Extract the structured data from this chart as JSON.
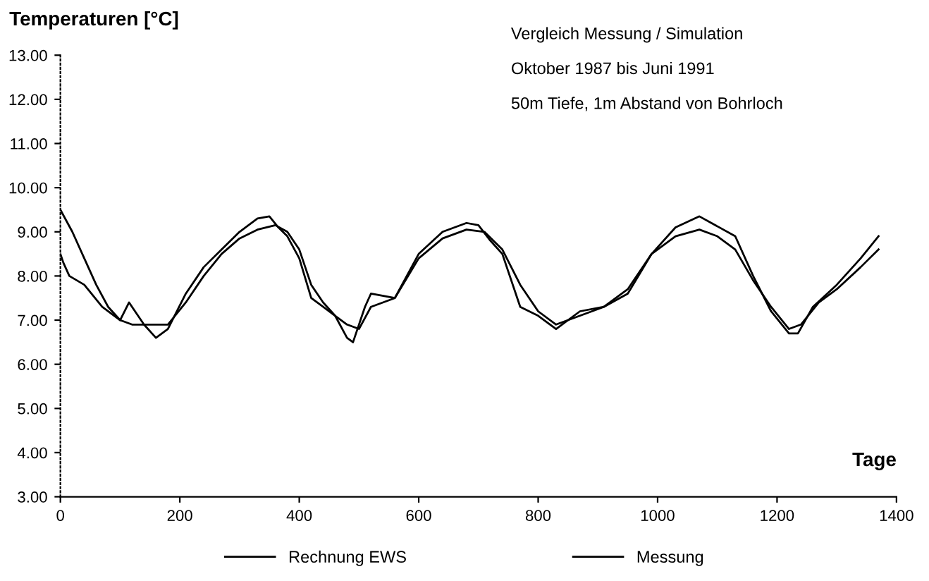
{
  "chart_data": {
    "type": "line",
    "title": "Vergleich Messung / Simulation",
    "annotations": [
      "Oktober 1987 bis Juni 1991",
      "50m Tiefe, 1m Abstand von Bohrloch"
    ],
    "ylabel": "Temperaturen [°C]",
    "xlabel": "Tage",
    "xlim": [
      0,
      1400
    ],
    "xticks": [
      0,
      200,
      400,
      600,
      800,
      1000,
      1200,
      1400
    ],
    "ylim": [
      3,
      13
    ],
    "yticks": [
      {
        "value": 3,
        "label": "3.00"
      },
      {
        "value": 4,
        "label": "4.00"
      },
      {
        "value": 5,
        "label": "5.00"
      },
      {
        "value": 6,
        "label": "6.00"
      },
      {
        "value": 7,
        "label": "7.00"
      },
      {
        "value": 8,
        "label": "8.00"
      },
      {
        "value": 9,
        "label": "9.00"
      },
      {
        "value": 10,
        "label": "10.00"
      },
      {
        "value": 11,
        "label": "11.00"
      },
      {
        "value": 12,
        "label": "12.00"
      },
      {
        "value": 13,
        "label": "13.00"
      }
    ],
    "grid": false,
    "legend": "bottom",
    "marker": "none",
    "line_style": "solid",
    "series": [
      {
        "name": "Rechnung EWS",
        "color": "#000000",
        "x": [
          0,
          20,
          40,
          60,
          80,
          100,
          120,
          150,
          180,
          210,
          240,
          270,
          300,
          330,
          360,
          380,
          400,
          420,
          440,
          460,
          480,
          500,
          520,
          560,
          600,
          640,
          680,
          710,
          740,
          770,
          800,
          830,
          870,
          910,
          950,
          990,
          1030,
          1070,
          1100,
          1130,
          1160,
          1190,
          1220,
          1240,
          1270,
          1300,
          1340,
          1370
        ],
        "values": [
          9.5,
          9.0,
          8.4,
          7.8,
          7.3,
          7.0,
          6.9,
          6.9,
          6.9,
          7.4,
          8.0,
          8.5,
          8.85,
          9.05,
          9.15,
          9.0,
          8.6,
          7.8,
          7.4,
          7.1,
          6.9,
          6.8,
          7.3,
          7.5,
          8.4,
          8.85,
          9.05,
          9.0,
          8.6,
          7.8,
          7.2,
          6.9,
          7.1,
          7.3,
          7.7,
          8.5,
          8.9,
          9.05,
          8.9,
          8.6,
          7.9,
          7.3,
          6.8,
          6.9,
          7.4,
          7.7,
          8.2,
          8.6
        ]
      },
      {
        "name": "Messung",
        "color": "#000000",
        "x": [
          0,
          5,
          15,
          40,
          70,
          100,
          115,
          125,
          140,
          160,
          180,
          210,
          240,
          270,
          300,
          330,
          350,
          365,
          380,
          400,
          420,
          440,
          460,
          480,
          490,
          510,
          520,
          560,
          600,
          640,
          680,
          700,
          720,
          740,
          770,
          800,
          830,
          870,
          910,
          950,
          990,
          1030,
          1070,
          1090,
          1130,
          1160,
          1190,
          1220,
          1235,
          1260,
          1300,
          1340,
          1370
        ],
        "values": [
          8.5,
          8.3,
          8.0,
          7.8,
          7.3,
          7.0,
          7.4,
          7.2,
          6.9,
          6.6,
          6.8,
          7.6,
          8.2,
          8.6,
          9.0,
          9.3,
          9.35,
          9.1,
          8.9,
          8.4,
          7.5,
          7.3,
          7.1,
          6.6,
          6.5,
          7.3,
          7.6,
          7.5,
          8.5,
          9.0,
          9.2,
          9.15,
          8.8,
          8.5,
          7.3,
          7.1,
          6.8,
          7.2,
          7.3,
          7.6,
          8.5,
          9.1,
          9.35,
          9.2,
          8.9,
          8.0,
          7.2,
          6.7,
          6.7,
          7.3,
          7.8,
          8.4,
          8.9
        ]
      }
    ]
  }
}
